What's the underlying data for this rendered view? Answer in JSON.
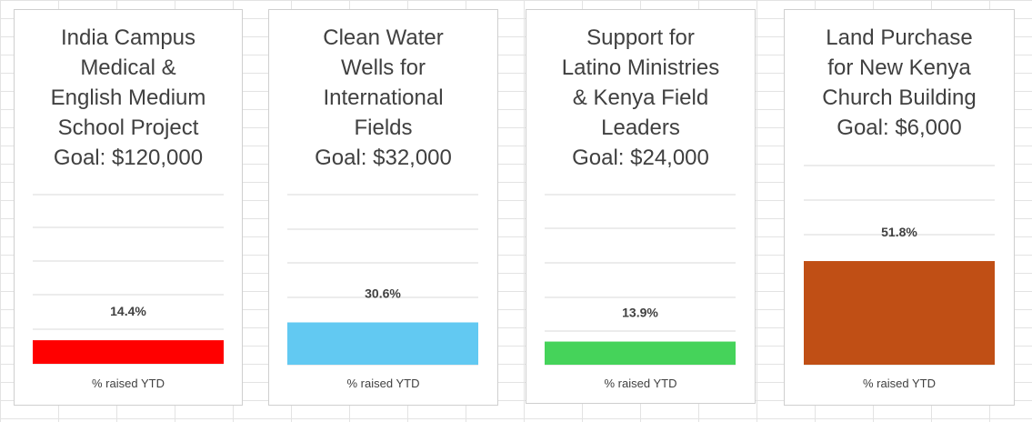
{
  "chart_data": [
    {
      "type": "bar",
      "title": "India Campus\nMedical &\nEnglish Medium\nSchool Project\nGoal: $120,000",
      "categories": [
        "% raised YTD"
      ],
      "values": [
        14.4
      ],
      "value_labels": [
        "14.4%"
      ],
      "color": "#ff0000",
      "ylim": [
        0,
        100
      ],
      "grid": true
    },
    {
      "type": "bar",
      "title": "Clean Water\nWells for\nInternational\nFields\nGoal: $32,000",
      "categories": [
        "% raised YTD"
      ],
      "values": [
        30.6
      ],
      "value_labels": [
        "30.6%"
      ],
      "color": "#62c9f2",
      "ylim": [
        0,
        100
      ],
      "grid": true
    },
    {
      "type": "bar",
      "title": "Support for\nLatino Ministries\n& Kenya Field\nLeaders\nGoal: $24,000",
      "categories": [
        "% raised YTD"
      ],
      "values": [
        13.9
      ],
      "value_labels": [
        "13.9%"
      ],
      "color": "#45d35a",
      "ylim": [
        0,
        100
      ],
      "grid": true
    },
    {
      "type": "bar",
      "title": "Land Purchase\nfor New Kenya\nChurch Building\nGoal: $6,000",
      "categories": [
        "% raised YTD"
      ],
      "values": [
        51.8
      ],
      "value_labels": [
        "51.8%"
      ],
      "color": "#c04f15",
      "ylim": [
        0,
        100
      ],
      "grid": true
    }
  ]
}
